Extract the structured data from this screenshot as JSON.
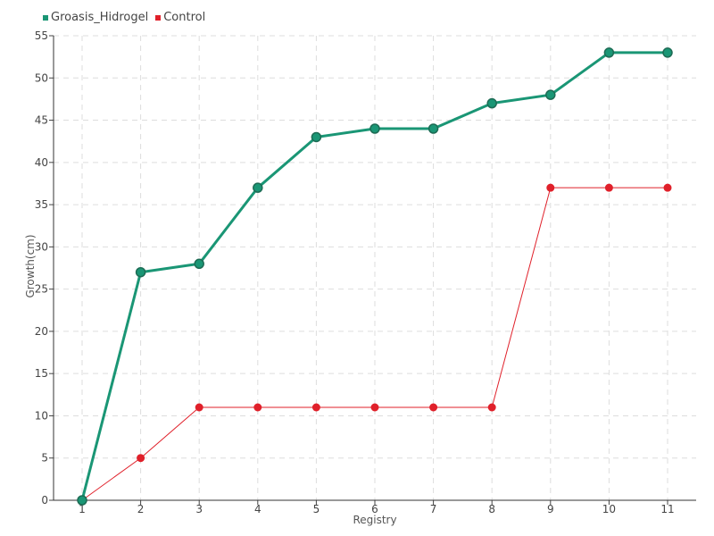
{
  "chart_data": {
    "type": "line",
    "xlabel": "Registry",
    "ylabel": "Growth(cm)",
    "categories": [
      "1",
      "2",
      "3",
      "4",
      "5",
      "6",
      "7",
      "8",
      "9",
      "10",
      "11"
    ],
    "ylim": [
      0,
      55
    ],
    "yticks": [
      0,
      5,
      10,
      15,
      20,
      25,
      30,
      35,
      40,
      45,
      50,
      55
    ],
    "grid": true,
    "legend_position": "top-left",
    "series": [
      {
        "name": "Groasis_Hidrogel",
        "color": "#1a9675",
        "values": [
          0,
          27,
          28,
          37,
          43,
          44,
          44,
          47,
          48,
          53,
          53
        ]
      },
      {
        "name": "Control",
        "color": "#e0202a",
        "values": [
          0,
          5,
          11,
          11,
          11,
          11,
          11,
          11,
          37,
          37,
          37
        ]
      }
    ]
  }
}
